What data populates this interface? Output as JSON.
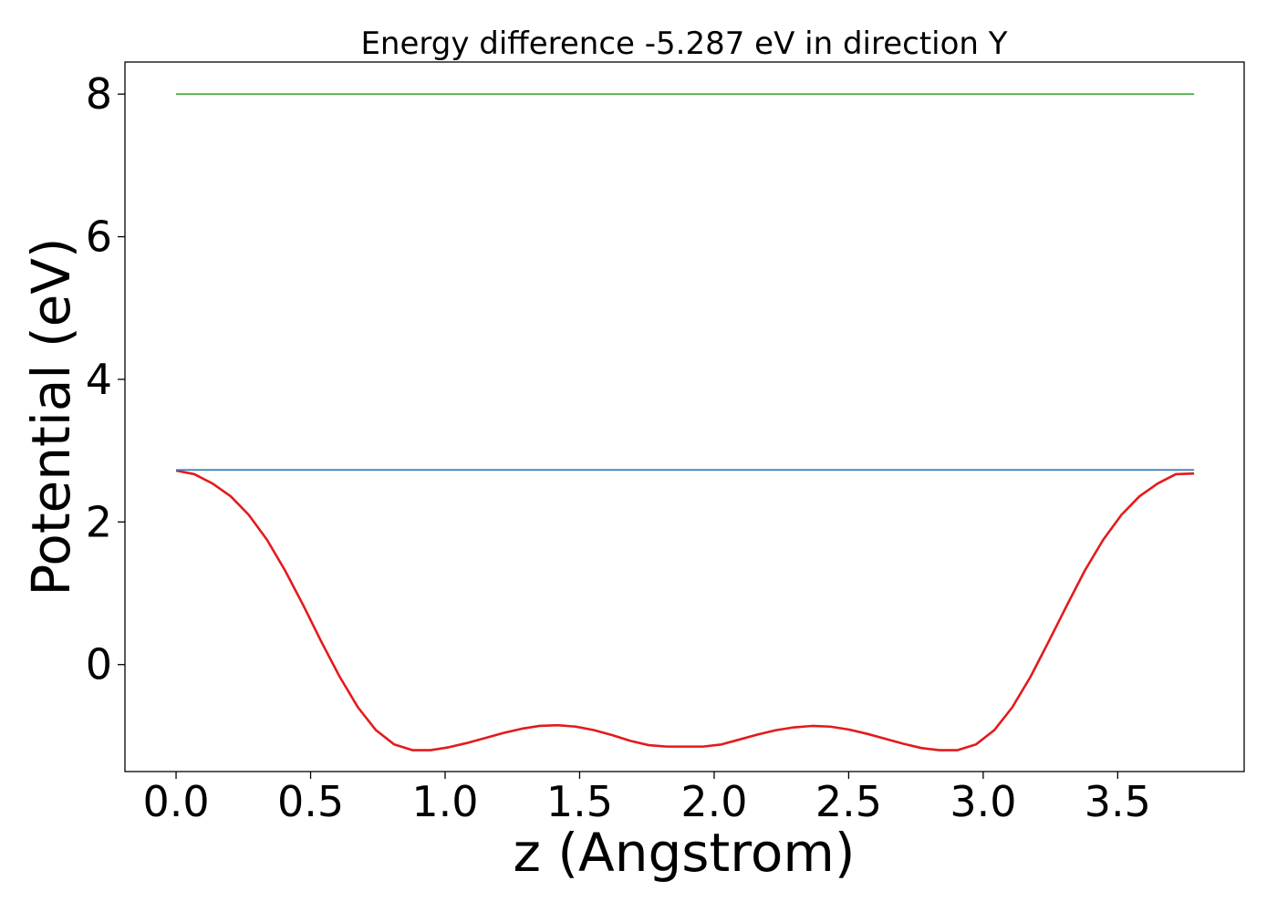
{
  "chart_data": {
    "type": "line",
    "title": "Energy difference -5.287 eV in direction Y",
    "xlabel": "z (Angstrom)",
    "ylabel": "Potential (eV)",
    "xlim": [
      -0.19,
      3.97
    ],
    "ylim": [
      -1.5,
      8.45
    ],
    "x_ticks": [
      0.0,
      0.5,
      1.0,
      1.5,
      2.0,
      2.5,
      3.0,
      3.5
    ],
    "x_tick_labels": [
      "0.0",
      "0.5",
      "1.0",
      "1.5",
      "2.0",
      "2.5",
      "3.0",
      "3.5"
    ],
    "y_ticks": [
      0,
      2,
      4,
      6,
      8
    ],
    "y_tick_labels": [
      "0",
      "2",
      "4",
      "6",
      "8"
    ],
    "grid": false,
    "legend": false,
    "series": [
      {
        "color": "#e31a1c",
        "x": [
          0.0,
          0.068,
          0.135,
          0.203,
          0.27,
          0.338,
          0.405,
          0.473,
          0.54,
          0.608,
          0.676,
          0.743,
          0.811,
          0.878,
          0.946,
          1.013,
          1.081,
          1.149,
          1.216,
          1.284,
          1.351,
          1.419,
          1.486,
          1.554,
          1.622,
          1.689,
          1.757,
          1.824,
          1.892,
          1.959,
          2.027,
          2.095,
          2.162,
          2.23,
          2.297,
          2.365,
          2.432,
          2.5,
          2.568,
          2.635,
          2.703,
          2.77,
          2.838,
          2.905,
          2.973,
          3.041,
          3.108,
          3.176,
          3.243,
          3.311,
          3.378,
          3.446,
          3.514,
          3.581,
          3.649,
          3.716,
          3.784
        ],
        "y": [
          2.72,
          2.67,
          2.54,
          2.36,
          2.1,
          1.75,
          1.32,
          0.83,
          0.32,
          -0.17,
          -0.6,
          -0.92,
          -1.12,
          -1.2,
          -1.2,
          -1.16,
          -1.1,
          -1.03,
          -0.96,
          -0.9,
          -0.86,
          -0.85,
          -0.87,
          -0.92,
          -0.99,
          -1.07,
          -1.13,
          -1.15,
          -1.15,
          -1.15,
          -1.12,
          -1.05,
          -0.98,
          -0.92,
          -0.88,
          -0.86,
          -0.87,
          -0.91,
          -0.97,
          -1.04,
          -1.11,
          -1.17,
          -1.2,
          -1.2,
          -1.12,
          -0.92,
          -0.6,
          -0.17,
          0.32,
          0.83,
          1.32,
          1.75,
          2.1,
          2.36,
          2.54,
          2.67,
          2.68
        ]
      },
      {
        "color": "#377eb8",
        "x": [
          0.0,
          3.784
        ],
        "y": [
          2.73,
          2.73
        ]
      },
      {
        "color": "#4daf4a",
        "x": [
          0.0,
          3.784
        ],
        "y": [
          8.0,
          8.0
        ]
      }
    ]
  }
}
